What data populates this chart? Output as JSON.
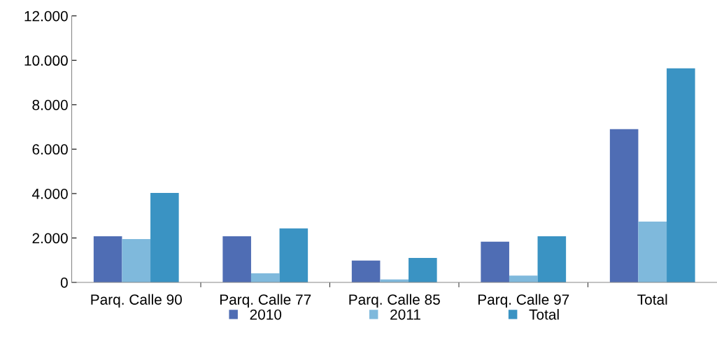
{
  "chart_data": {
    "type": "bar",
    "categories": [
      "Parq. Calle 90",
      "Parq. Calle 77",
      "Parq. Calle 85",
      "Parq. Calle 97",
      "Total"
    ],
    "series": [
      {
        "name": "2010",
        "color": "#4f6db4",
        "values": [
          2080,
          2080,
          980,
          1830,
          6900
        ]
      },
      {
        "name": "2011",
        "color": "#7fb9dc",
        "values": [
          1950,
          410,
          130,
          310,
          2740
        ]
      },
      {
        "name": "Total",
        "color": "#3a93c3",
        "values": [
          4030,
          2430,
          1100,
          2080,
          9640
        ]
      }
    ],
    "ylim": [
      0,
      12000
    ],
    "yticks": [
      {
        "value": 0,
        "label": "0"
      },
      {
        "value": 2000,
        "label": "2.000"
      },
      {
        "value": 4000,
        "label": "4.000"
      },
      {
        "value": 6000,
        "label": "6.000"
      },
      {
        "value": 8000,
        "label": "8.000"
      },
      {
        "value": 10000,
        "label": "10.000"
      },
      {
        "value": 12000,
        "label": "12.000"
      }
    ],
    "grid": false,
    "legend": "bottom"
  }
}
